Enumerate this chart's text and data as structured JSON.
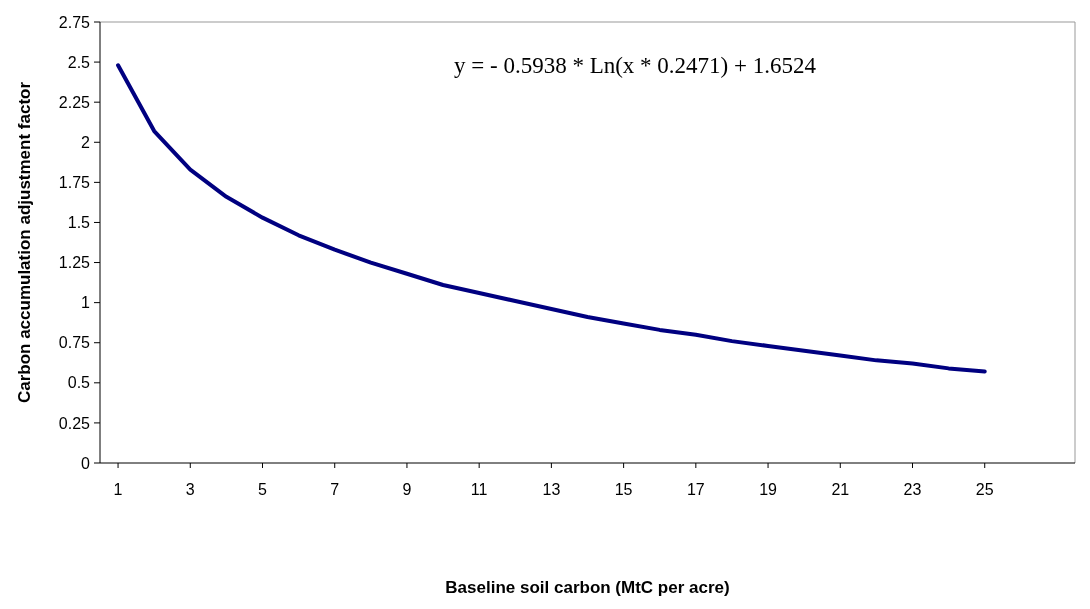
{
  "chart_data": {
    "type": "line",
    "xlabel": "Baseline soil carbon (MtC per acre)",
    "ylabel": "Carbon accumulation adjustment factor",
    "annotations": [
      "y = - 0.5938 * Ln(x * 0.2471) + 1.6524"
    ],
    "x": [
      1,
      2,
      3,
      4,
      5,
      6,
      7,
      8,
      9,
      10,
      11,
      12,
      13,
      14,
      15,
      16,
      17,
      18,
      19,
      20,
      21,
      22,
      23,
      24,
      25
    ],
    "series": [
      {
        "color": "#000080",
        "values": [
          2.48,
          2.07,
          1.83,
          1.66,
          1.53,
          1.42,
          1.33,
          1.25,
          1.18,
          1.11,
          1.06,
          1.01,
          0.96,
          0.91,
          0.87,
          0.83,
          0.8,
          0.76,
          0.73,
          0.7,
          0.67,
          0.64,
          0.62,
          0.59,
          0.57
        ]
      }
    ],
    "xlim": [
      0.5,
      27.5
    ],
    "xticks": [
      1,
      3,
      5,
      7,
      9,
      11,
      13,
      15,
      17,
      19,
      21,
      23,
      25
    ],
    "ylim": [
      0,
      2.75
    ],
    "yticks": [
      0,
      0.25,
      0.5,
      0.75,
      1,
      1.25,
      1.5,
      1.75,
      2,
      2.25,
      2.5,
      2.75
    ],
    "grid": false,
    "marker": "none",
    "line_style": "solid"
  }
}
